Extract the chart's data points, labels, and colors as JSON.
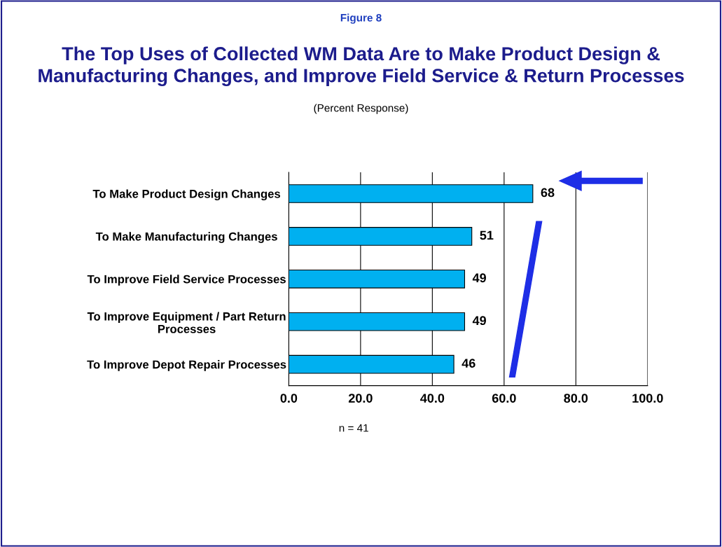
{
  "chart_data": {
    "type": "bar",
    "orientation": "horizontal",
    "title": "The Top Uses of Collected WM Data Are to Make Product Design &\nManufacturing Changes, and Improve Field Service & Return Processes",
    "subtitle": "(Percent Response)",
    "annotations": [
      "Figure 8",
      "n = 41"
    ],
    "categories": [
      "To Make Product Design Changes",
      "To Make Manufacturing Changes",
      "To Improve Field Service Processes",
      "To Improve Equipment / Part Return\nProcesses",
      "To Improve Depot Repair Processes"
    ],
    "values": [
      68,
      51,
      49,
      49,
      46
    ],
    "color": "#00b0f0",
    "data_labels": true,
    "xlim": [
      0,
      100
    ],
    "xticks": [
      {
        "value": 0,
        "label": "0.0"
      },
      {
        "value": 20,
        "label": "20.0"
      },
      {
        "value": 40,
        "label": "40.0"
      },
      {
        "value": 60,
        "label": "60.0"
      },
      {
        "value": 80,
        "label": "80.0"
      },
      {
        "value": 100,
        "label": "100.0"
      }
    ],
    "grid": "x"
  }
}
